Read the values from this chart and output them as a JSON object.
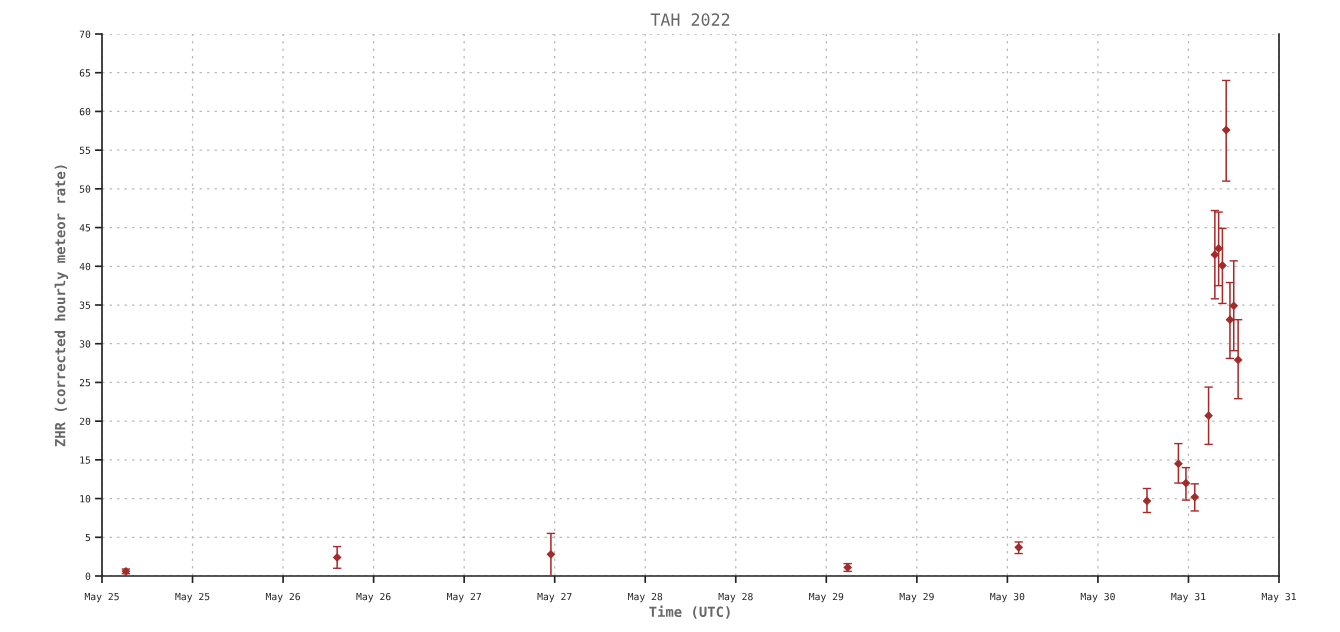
{
  "chart_data": {
    "type": "scatter",
    "title": "TAH 2022",
    "xlabel": "Time (UTC)",
    "ylabel": "ZHR (corrected hourly meteor rate)",
    "x": [
      "2022-05-25T03:10",
      "2022-05-26T07:10",
      "2022-05-27T11:30",
      "2022-05-29T02:50",
      "2022-05-30T01:30",
      "2022-05-30T18:30",
      "2022-05-30T22:40",
      "2022-05-30T23:40",
      "2022-05-31T00:50",
      "2022-05-31T02:40",
      "2022-05-31T03:30",
      "2022-05-31T04:00",
      "2022-05-31T04:30",
      "2022-05-31T05:00",
      "2022-05-31T05:30",
      "2022-05-31T06:00",
      "2022-05-31T06:35"
    ],
    "values": [
      0.6,
      2.4,
      2.8,
      1.1,
      3.7,
      9.7,
      14.5,
      12.0,
      10.2,
      20.7,
      41.5,
      42.3,
      40.1,
      57.6,
      33.1,
      34.9,
      27.9
    ],
    "errors": [
      [
        0.3,
        0.9
      ],
      [
        1.0,
        3.8
      ],
      [
        0.0,
        5.5
      ],
      [
        0.6,
        1.6
      ],
      [
        2.9,
        4.4
      ],
      [
        8.2,
        11.3
      ],
      [
        12.0,
        17.1
      ],
      [
        9.8,
        14.0
      ],
      [
        8.4,
        11.9
      ],
      [
        17.0,
        24.4
      ],
      [
        35.8,
        47.2
      ],
      [
        37.5,
        47.0
      ],
      [
        35.2,
        44.9
      ],
      [
        51.0,
        64.0
      ],
      [
        28.1,
        37.9
      ],
      [
        29.1,
        40.7
      ],
      [
        22.9,
        33.1
      ]
    ],
    "color": "#a52a2a",
    "marker": "diamond",
    "xlim": [
      "2022-05-25T00:00",
      "2022-05-31T12:00"
    ],
    "xticks": [
      {
        "value": "2022-05-25T00:00",
        "label": "May 25"
      },
      {
        "value": "2022-05-25T12:00",
        "label": "May 25"
      },
      {
        "value": "2022-05-26T00:00",
        "label": "May 26"
      },
      {
        "value": "2022-05-26T12:00",
        "label": "May 26"
      },
      {
        "value": "2022-05-27T00:00",
        "label": "May 27"
      },
      {
        "value": "2022-05-27T12:00",
        "label": "May 27"
      },
      {
        "value": "2022-05-28T00:00",
        "label": "May 28"
      },
      {
        "value": "2022-05-28T12:00",
        "label": "May 28"
      },
      {
        "value": "2022-05-29T00:00",
        "label": "May 29"
      },
      {
        "value": "2022-05-29T12:00",
        "label": "May 29"
      },
      {
        "value": "2022-05-30T00:00",
        "label": "May 30"
      },
      {
        "value": "2022-05-30T12:00",
        "label": "May 30"
      },
      {
        "value": "2022-05-31T00:00",
        "label": "May 31"
      },
      {
        "value": "2022-05-31T12:00",
        "label": "May 31"
      }
    ],
    "ylim": [
      0,
      70
    ],
    "yticks": [
      0,
      5,
      10,
      15,
      20,
      25,
      30,
      35,
      40,
      45,
      50,
      55,
      60,
      65,
      70
    ],
    "grid": true
  }
}
